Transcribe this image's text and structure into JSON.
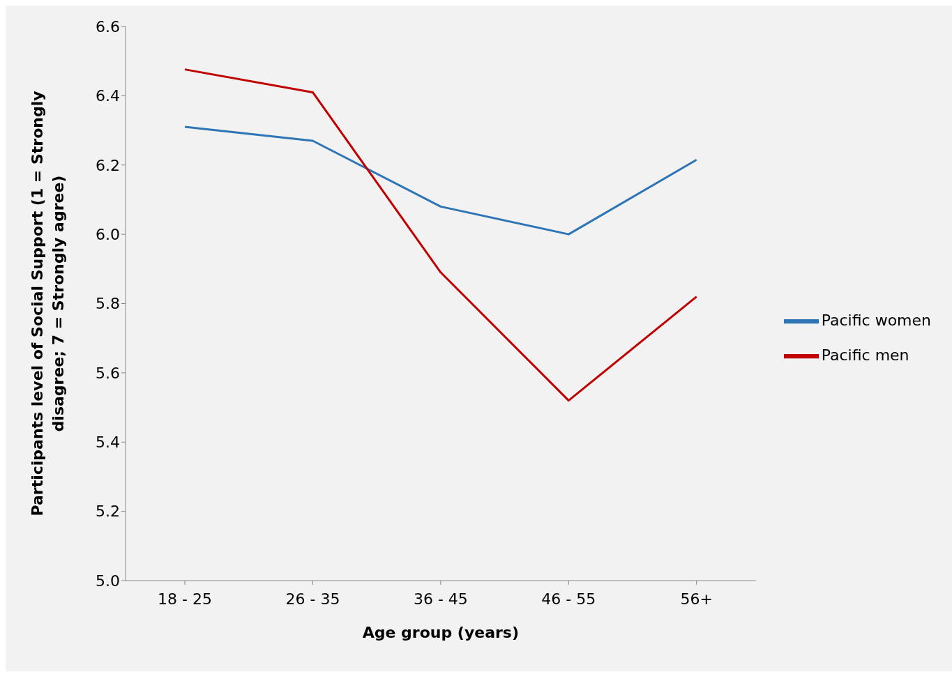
{
  "chart_data": {
    "type": "line",
    "xlabel": "Age group (years)",
    "ylabel": "Participants level of Social Support (1 = Strongly disagree; 7 = Strongly agree)",
    "categories": [
      "18 - 25",
      "26 - 35",
      "36 - 45",
      "46 - 55",
      "56+"
    ],
    "series": [
      {
        "name": "Pacific women",
        "color": "#2e75b6",
        "values": [
          6.31,
          6.27,
          6.08,
          6.0,
          6.215
        ]
      },
      {
        "name": "Pacific men",
        "color": "#c00000",
        "values": [
          6.476,
          6.41,
          5.89,
          5.52,
          5.82
        ]
      }
    ],
    "ylim": [
      5.0,
      6.6
    ],
    "yticks": [
      {
        "value": 5,
        "label": "5.0"
      },
      5.2,
      5.4,
      5.6,
      5.8,
      {
        "value": 6,
        "label": "6.0"
      },
      6.2,
      6.4,
      6.6
    ],
    "grid": false,
    "legend": "right",
    "marker": "none",
    "line_style": "solid"
  }
}
